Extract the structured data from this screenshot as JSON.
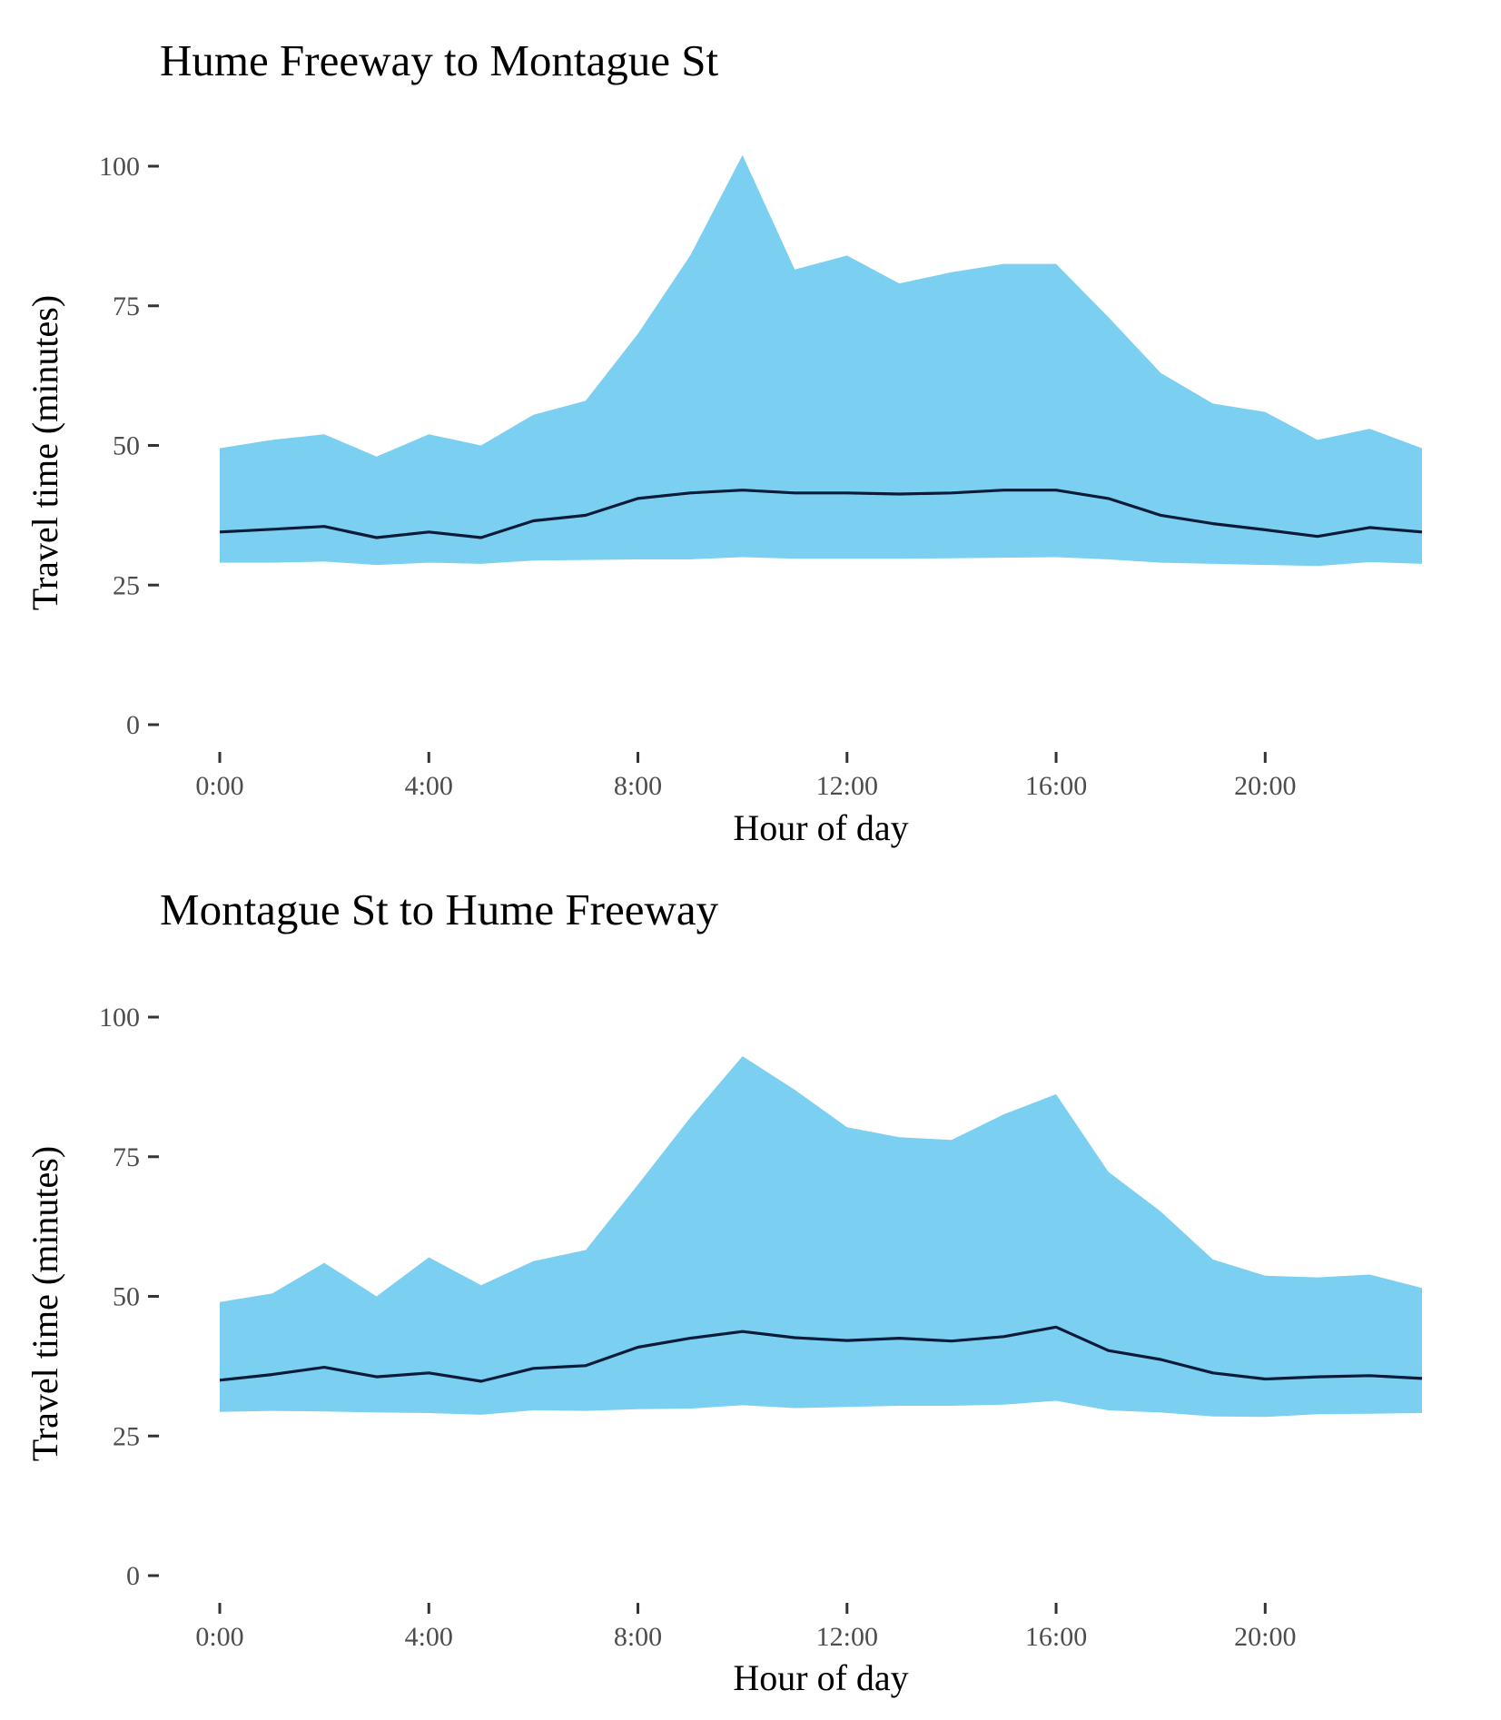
{
  "colors": {
    "band": "#7bd0f2",
    "median_line": "#0d1b3a",
    "tick": "#333333",
    "tick_label": "#4d4d4d"
  },
  "chart_data": [
    {
      "type": "area",
      "title": "Hume Freeway to Montague St",
      "xlabel": "Hour of day",
      "ylabel": "Travel time (minutes)",
      "xlim": [
        0,
        23
      ],
      "ylim": [
        0,
        100
      ],
      "x_ticks": [
        0,
        4,
        8,
        12,
        16,
        20
      ],
      "x_tick_labels": [
        "0:00",
        "4:00",
        "8:00",
        "12:00",
        "16:00",
        "20:00"
      ],
      "y_ticks": [
        0,
        25,
        50,
        75,
        100
      ],
      "y_tick_labels": [
        "0",
        "25",
        "50",
        "75",
        "100"
      ],
      "grid": false,
      "hours": [
        0,
        1,
        2,
        3,
        4,
        5,
        6,
        7,
        8,
        9,
        10,
        11,
        12,
        13,
        14,
        15,
        16,
        17,
        18,
        19,
        20,
        21,
        22,
        23
      ],
      "series": [
        {
          "name": "upper",
          "values": [
            49.5,
            51,
            52,
            48,
            52,
            50,
            55.5,
            58,
            70,
            84,
            102,
            81.5,
            84,
            79,
            81,
            82.5,
            82.5,
            73,
            63,
            57.5,
            56,
            51,
            53,
            49.5
          ]
        },
        {
          "name": "median",
          "values": [
            34.5,
            35,
            35.5,
            33.5,
            34.5,
            33.5,
            36.5,
            37.5,
            40.5,
            41.5,
            42,
            41.5,
            41.5,
            41.3,
            41.5,
            42,
            42,
            40.5,
            37.5,
            36,
            34.9,
            33.7,
            35.3,
            34.5
          ]
        },
        {
          "name": "lower",
          "values": [
            29,
            29,
            29.2,
            28.6,
            29,
            28.8,
            29.4,
            29.5,
            29.6,
            29.6,
            30,
            29.7,
            29.7,
            29.7,
            29.8,
            29.9,
            30,
            29.6,
            29,
            28.8,
            28.6,
            28.4,
            29.1,
            28.8
          ]
        }
      ]
    },
    {
      "type": "area",
      "title": "Montague St to Hume Freeway",
      "xlabel": "Hour of day",
      "ylabel": "Travel time (minutes)",
      "xlim": [
        0,
        23
      ],
      "ylim": [
        0,
        100
      ],
      "x_ticks": [
        0,
        4,
        8,
        12,
        16,
        20
      ],
      "x_tick_labels": [
        "0:00",
        "4:00",
        "8:00",
        "12:00",
        "16:00",
        "20:00"
      ],
      "y_ticks": [
        0,
        25,
        50,
        75,
        100
      ],
      "y_tick_labels": [
        "0",
        "25",
        "50",
        "75",
        "100"
      ],
      "grid": false,
      "hours": [
        0,
        1,
        2,
        3,
        4,
        5,
        6,
        7,
        8,
        9,
        10,
        11,
        12,
        13,
        14,
        15,
        16,
        17,
        18,
        19,
        20,
        21,
        22,
        23
      ],
      "series": [
        {
          "name": "upper",
          "values": [
            49,
            50.5,
            56,
            50,
            57,
            52,
            56.3,
            58.3,
            70,
            82,
            93,
            87,
            80.3,
            78.5,
            78,
            82.6,
            86.2,
            72.3,
            65.2,
            56.6,
            53.7,
            53.4,
            53.9,
            51.5
          ]
        },
        {
          "name": "median",
          "values": [
            35,
            36,
            37.3,
            35.6,
            36.3,
            34.8,
            37.1,
            37.6,
            40.9,
            42.5,
            43.7,
            42.6,
            42.1,
            42.5,
            42,
            42.8,
            44.5,
            40.3,
            38.7,
            36.3,
            35.2,
            35.6,
            35.8,
            35.3
          ]
        },
        {
          "name": "lower",
          "values": [
            29.3,
            29.5,
            29.4,
            29.2,
            29.1,
            28.8,
            29.6,
            29.5,
            29.8,
            29.9,
            30.5,
            30,
            30.2,
            30.4,
            30.4,
            30.6,
            31.3,
            29.6,
            29.2,
            28.5,
            28.4,
            28.9,
            29,
            29.1
          ]
        }
      ]
    }
  ]
}
